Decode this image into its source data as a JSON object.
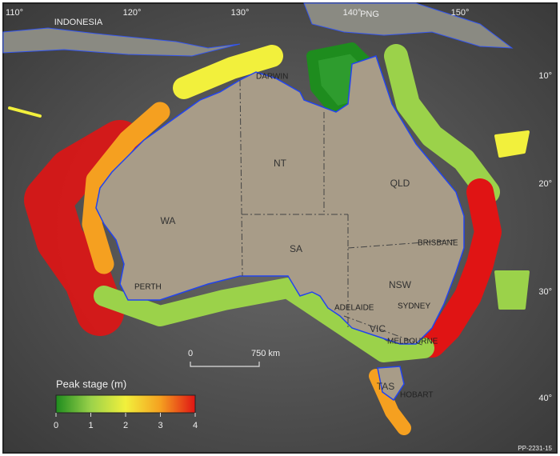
{
  "map": {
    "regions": [
      "INDONESIA",
      "PNG"
    ],
    "longitudes": [
      "110°",
      "120°",
      "130°",
      "140°",
      "150°"
    ],
    "latitudes": [
      "10°",
      "20°",
      "30°",
      "40°"
    ],
    "states": [
      "WA",
      "NT",
      "SA",
      "QLD",
      "NSW",
      "VIC",
      "TAS"
    ],
    "cities": [
      "DARWIN",
      "PERTH",
      "ADELAIDE",
      "BRISBANE",
      "SYDNEY",
      "MELBOURNE",
      "HOBART"
    ],
    "scale_bar": {
      "start": "0",
      "end": "750 km"
    },
    "legend": {
      "title": "Peak stage (m)",
      "ticks": [
        0,
        1,
        2,
        3,
        4
      ],
      "colors": [
        "#1e8c1e",
        "#9bd24a",
        "#f2f03c",
        "#f5a020",
        "#e01414"
      ]
    },
    "code": "PP-2231-15"
  }
}
